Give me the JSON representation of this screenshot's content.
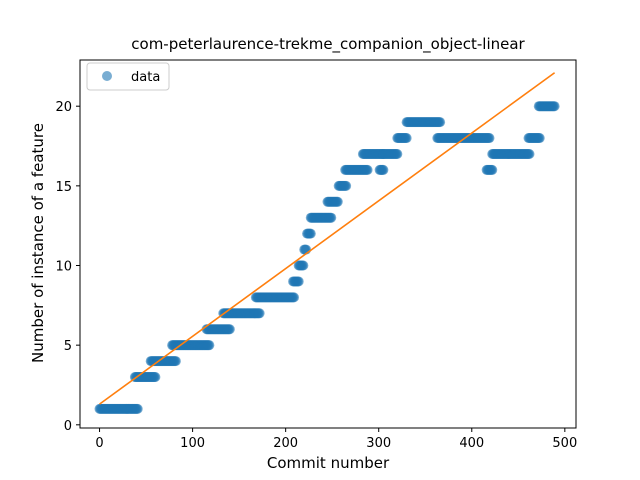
{
  "chart_data": {
    "type": "scatter",
    "title": "com-peterlaurence-trekme_companion_object-linear",
    "xlabel": "Commit number",
    "ylabel": "Number of instance of a feature",
    "xlim": [
      -21,
      512
    ],
    "ylim": [
      -0.2,
      22.9
    ],
    "xticks": [
      0,
      100,
      200,
      300,
      400,
      500
    ],
    "yticks": [
      0,
      5,
      10,
      15,
      20
    ],
    "legend": {
      "position": "top-left",
      "entries": [
        "data"
      ]
    },
    "colors": {
      "points": "#1f77b4",
      "fit": "#ff7f0e"
    },
    "series": [
      {
        "name": "data",
        "kind": "points",
        "steps": [
          [
            0,
            41,
            1
          ],
          [
            38,
            60,
            3
          ],
          [
            55,
            82,
            4
          ],
          [
            78,
            118,
            5
          ],
          [
            115,
            140,
            6
          ],
          [
            133,
            172,
            7
          ],
          [
            168,
            209,
            8
          ],
          [
            208,
            214,
            9
          ],
          [
            214,
            219,
            10
          ],
          [
            220,
            222,
            11
          ],
          [
            223,
            227,
            12
          ],
          [
            227,
            249,
            13
          ],
          [
            245,
            256,
            14
          ],
          [
            257,
            265,
            15
          ],
          [
            264,
            288,
            16
          ],
          [
            283,
            305,
            17
          ],
          [
            301,
            305,
            16
          ],
          [
            305,
            320,
            17
          ],
          [
            320,
            330,
            18
          ],
          [
            330,
            366,
            19
          ],
          [
            363,
            419,
            18
          ],
          [
            416,
            422,
            16
          ],
          [
            422,
            462,
            17
          ],
          [
            461,
            473,
            18
          ],
          [
            472,
            489,
            20
          ]
        ]
      },
      {
        "name": "",
        "kind": "line",
        "x": [
          0,
          489
        ],
        "y": [
          1.3,
          22.1
        ]
      }
    ]
  }
}
